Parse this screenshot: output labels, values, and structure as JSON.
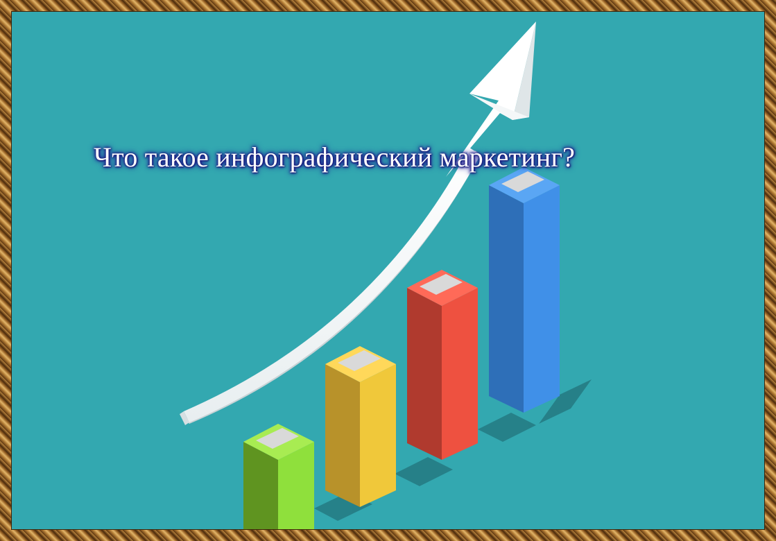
{
  "slide": {
    "title": "Что такое инфографический маркетинг?",
    "background_color": "#33a8b0",
    "frame_style": "ornate gold picture frame",
    "illustration": {
      "arrow_icon": "growth-arrow-icon",
      "bars": [
        {
          "color": "#7fd63a",
          "level": 0.3
        },
        {
          "color": "#f0c83a",
          "level": 0.5
        },
        {
          "color": "#ee5140",
          "level": 0.65
        },
        {
          "color": "#4090e8",
          "level": 0.85
        }
      ]
    }
  }
}
